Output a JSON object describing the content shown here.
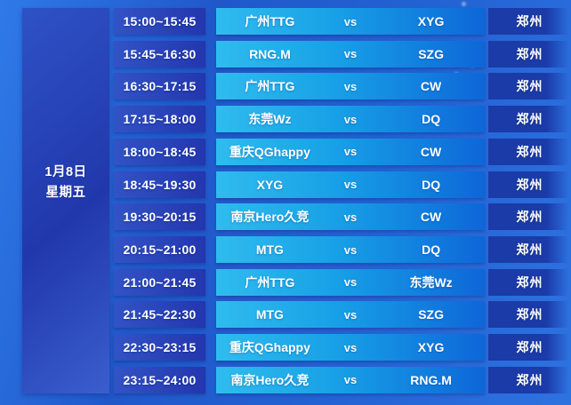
{
  "schedule": {
    "date_panel": {
      "date": "1月8日",
      "weekday": "星期五"
    },
    "vs_label": "vs",
    "rows": [
      {
        "time": "15:00~15:45",
        "team1": "广州TTG",
        "team2": "XYG",
        "location": "郑州"
      },
      {
        "time": "15:45~16:30",
        "team1": "RNG.M",
        "team2": "SZG",
        "location": "郑州"
      },
      {
        "time": "16:30~17:15",
        "team1": "广州TTG",
        "team2": "CW",
        "location": "郑州"
      },
      {
        "time": "17:15~18:00",
        "team1": "东莞Wz",
        "team2": "DQ",
        "location": "郑州"
      },
      {
        "time": "18:00~18:45",
        "team1": "重庆QGhappy",
        "team2": "CW",
        "location": "郑州"
      },
      {
        "time": "18:45~19:30",
        "team1": "XYG",
        "team2": "DQ",
        "location": "郑州"
      },
      {
        "time": "19:30~20:15",
        "team1": "南京Hero久竞",
        "team2": "CW",
        "location": "郑州"
      },
      {
        "time": "20:15~21:00",
        "team1": "MTG",
        "team2": "DQ",
        "location": "郑州"
      },
      {
        "time": "21:00~21:45",
        "team1": "广州TTG",
        "team2": "东莞Wz",
        "location": "郑州"
      },
      {
        "time": "21:45~22:30",
        "team1": "MTG",
        "team2": "SZG",
        "location": "郑州"
      },
      {
        "time": "22:30~23:15",
        "team1": "重庆QGhappy",
        "team2": "XYG",
        "location": "郑州"
      },
      {
        "time": "23:15~24:00",
        "team1": "南京Hero久竞",
        "team2": "RNG.M",
        "location": "郑州"
      }
    ]
  },
  "colors": {
    "bg_a": "#2f7ae8",
    "bg_b": "#2058ca",
    "bg_c": "#2363d4",
    "bg_d": "#2e72e0",
    "panel_a": "#2e52c6",
    "panel_b": "#2138ac",
    "panel_c": "#3a5ecf",
    "cell_a": "#3253c6",
    "cell_b": "#2336ae",
    "match_a": "#2fbcee",
    "match_b": "#17a0e6",
    "match_c": "#0e66d8",
    "loc_a": "#1b3ba8",
    "text": "#ffffff"
  }
}
